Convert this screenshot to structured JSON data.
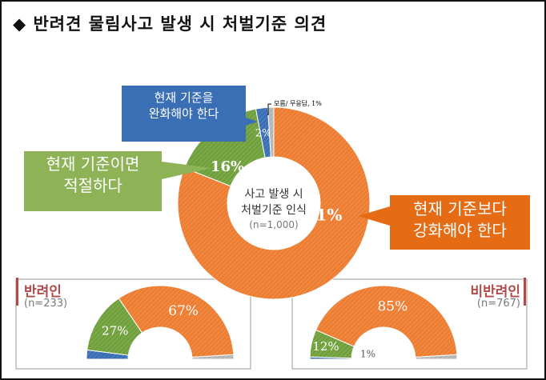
{
  "title": "◆ 반려견 물림사고 발생 시 처벌기준 의견",
  "chart_data": [
    {
      "type": "pie",
      "subtype": "donut",
      "title": "사고 발생 시 처벌기준 인식",
      "n_label": "(n=1,000)",
      "categories": [
        "현재 기준보다 강화해야 한다",
        "현재 기준이면 적절하다",
        "현재 기준을 완화해야 한다",
        "모름/ 무응답"
      ],
      "values": [
        81,
        16,
        2,
        1
      ],
      "labels": [
        "81%",
        "16%",
        "2%",
        "모름/ 무응답, 1%"
      ],
      "colors": [
        "#ed7d31",
        "#70a03c",
        "#3a6fb5",
        "#b5b5b5"
      ]
    },
    {
      "type": "pie",
      "subtype": "half-donut",
      "title": "반려인",
      "n_label": "(n=233)",
      "categories": [
        "현재 기준을 완화해야 한다",
        "현재 기준이면 적절하다",
        "현재 기준보다 강화해야 한다",
        "모름/ 무응답"
      ],
      "values": [
        4,
        27,
        67,
        2
      ],
      "labels": [
        "4%",
        "27%",
        "67%",
        ""
      ],
      "colors": [
        "#3a6fb5",
        "#70a03c",
        "#ed7d31",
        "#b5b5b5"
      ]
    },
    {
      "type": "pie",
      "subtype": "half-donut",
      "title": "비반려인",
      "n_label": "(n=767)",
      "categories": [
        "현재 기준을 완화해야 한다",
        "현재 기준이면 적절하다",
        "현재 기준보다 강화해야 한다",
        "모름/ 무응답"
      ],
      "values": [
        1,
        12,
        85,
        2
      ],
      "labels": [
        "1%",
        "12%",
        "85%",
        ""
      ],
      "colors": [
        "#3a6fb5",
        "#70a03c",
        "#ed7d31",
        "#b5b5b5"
      ]
    }
  ],
  "callouts": {
    "strengthen": [
      "현재 기준보다",
      "강화해야 한다"
    ],
    "adequate": [
      "현재 기준이면",
      "적절하다"
    ],
    "relax": [
      "현재 기준을",
      "완화해야 한다"
    ]
  },
  "center_text": [
    "사고 발생 시",
    "처벌기준 인식"
  ]
}
